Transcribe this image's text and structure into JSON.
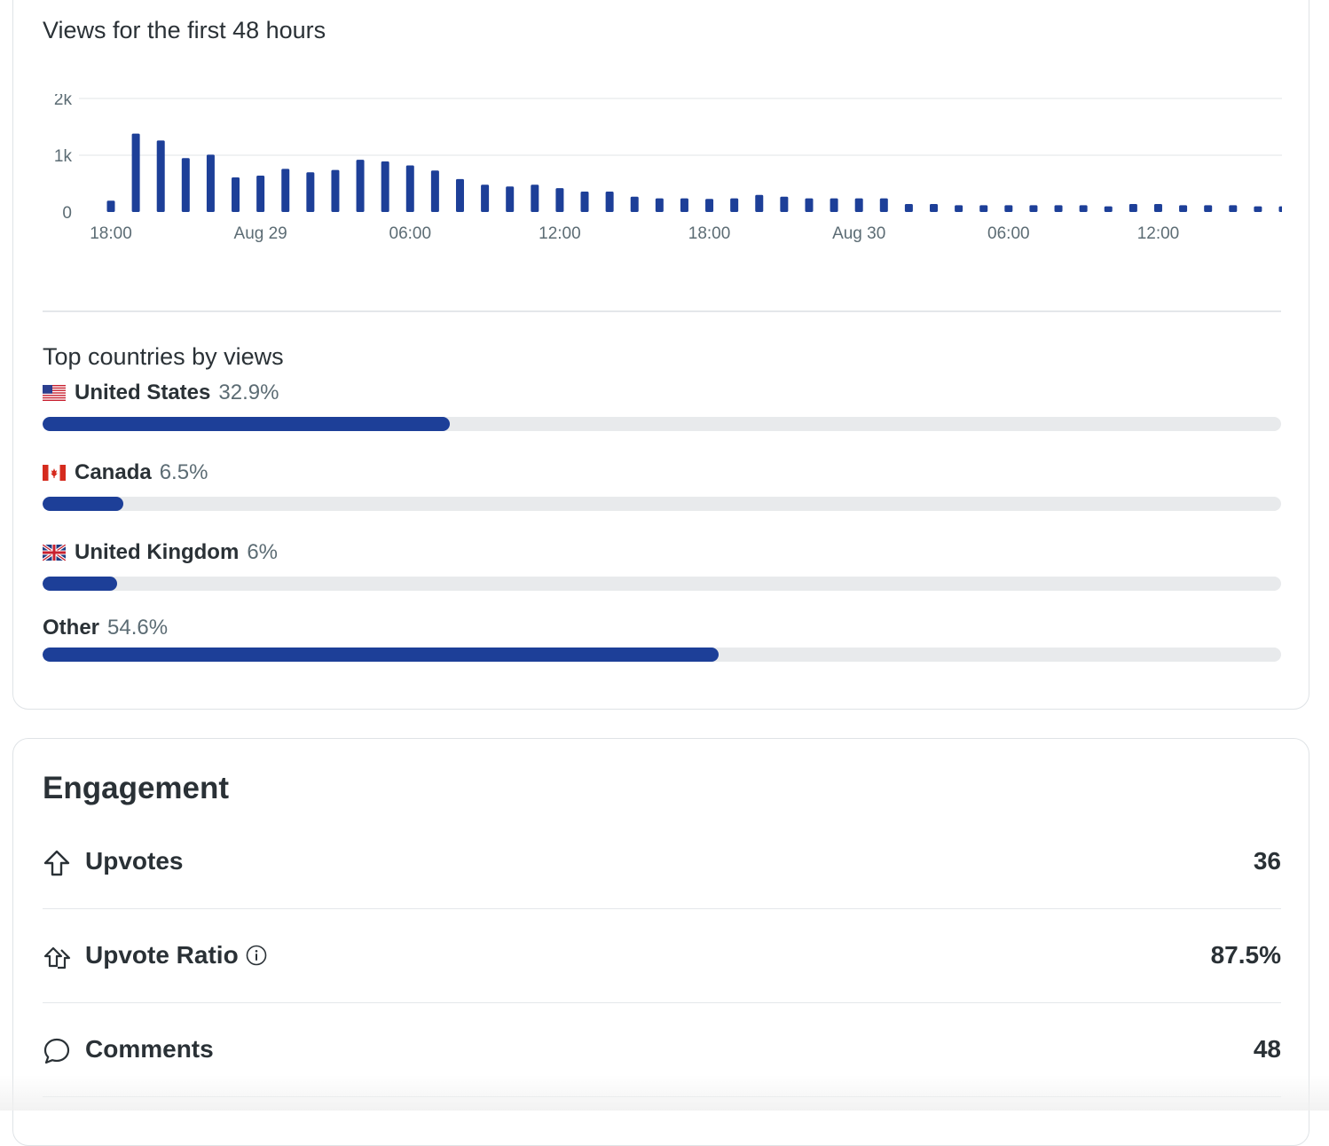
{
  "views_section": {
    "title": "Views for the first 48 hours"
  },
  "chart_data": {
    "type": "bar",
    "title": "Views for the first 48 hours",
    "xlabel": "",
    "ylabel": "",
    "ylim": [
      0,
      2000
    ],
    "y_ticks": [
      {
        "value": 0,
        "label": "0"
      },
      {
        "value": 1000,
        "label": "1k"
      },
      {
        "value": 2000,
        "label": "2k"
      }
    ],
    "x_tick_labels": [
      "18:00",
      "Aug 29",
      "06:00",
      "12:00",
      "18:00",
      "Aug 30",
      "06:00",
      "12:00"
    ],
    "x_tick_every_n_bars": 6,
    "grid": true,
    "bar_color": "#1d3f98",
    "series": [
      {
        "values": [
          200,
          1380,
          1260,
          950,
          1010,
          610,
          640,
          760,
          700,
          740,
          920,
          890,
          820,
          730,
          580,
          480,
          450,
          480,
          420,
          360,
          360,
          270,
          240,
          240,
          230,
          240,
          300,
          270,
          240,
          240,
          240,
          240,
          140,
          140,
          120,
          120,
          120,
          120,
          120,
          120,
          100,
          140,
          140,
          120,
          120,
          120,
          100,
          100
        ]
      }
    ]
  },
  "countries_section": {
    "title": "Top countries by views",
    "items": [
      {
        "flag": "us-flag",
        "name": "United States",
        "percent_label": "32.9%",
        "fraction": 0.329
      },
      {
        "flag": "ca-flag",
        "name": "Canada",
        "percent_label": "6.5%",
        "fraction": 0.065
      },
      {
        "flag": "gb-flag",
        "name": "United Kingdom",
        "percent_label": "6%",
        "fraction": 0.06
      },
      {
        "flag": "",
        "name": "Other",
        "percent_label": "54.6%",
        "fraction": 0.546
      }
    ]
  },
  "engagement": {
    "title": "Engagement",
    "rows": [
      {
        "icon": "upvote-arrow-icon",
        "label": "Upvotes",
        "value": "36"
      },
      {
        "icon": "upvote-ratio-icon",
        "label": "Upvote Ratio",
        "value": "87.5%",
        "info_icon": "info-icon"
      },
      {
        "icon": "comment-bubble-icon",
        "label": "Comments",
        "value": "48"
      }
    ]
  },
  "colors": {
    "accent": "#1d3f98",
    "track": "#e8eaec",
    "text_primary": "#2a3136",
    "text_secondary": "#5c6c74"
  }
}
